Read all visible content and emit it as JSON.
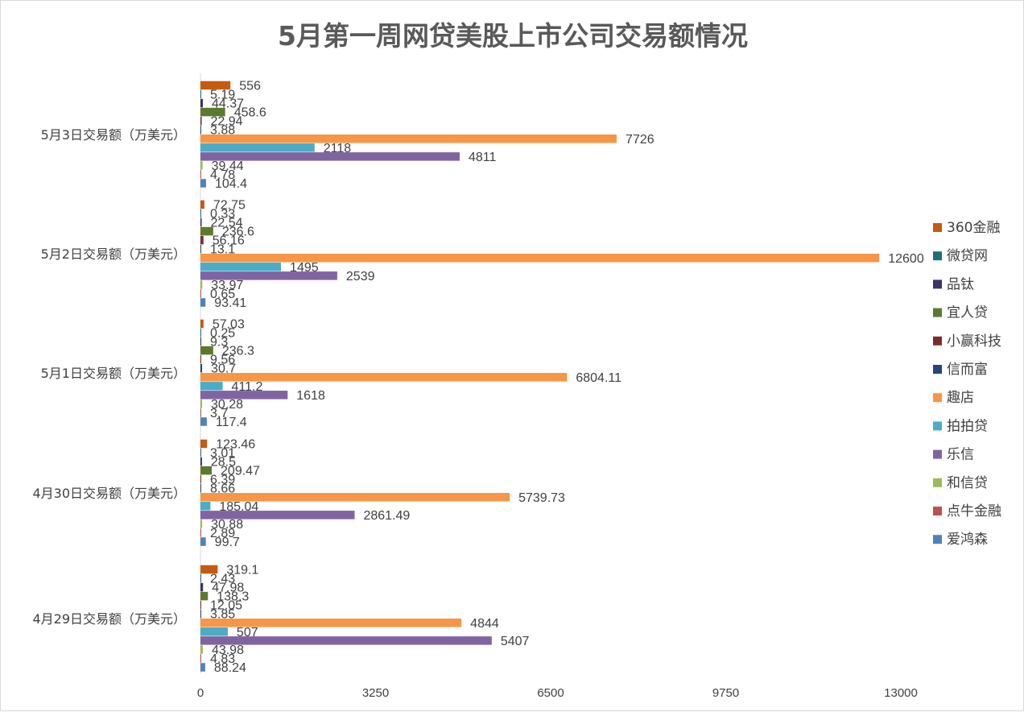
{
  "chart_data": {
    "type": "bar",
    "orientation": "horizontal",
    "title": "5月第一周网贷美股上市公司交易额情况",
    "categories": [
      "4月29日交易额（万美元）",
      "4月30日交易额（万美元）",
      "5月1日交易额（万美元）",
      "5月2日交易额（万美元）",
      "5月3日交易额（万美元）"
    ],
    "xlim": [
      0,
      13000
    ],
    "ticks": [
      "0",
      "3250",
      "6500",
      "9750",
      "13000"
    ],
    "grid": false,
    "legend_position": "right",
    "series": [
      {
        "name": "360金融",
        "color": "#C55A11",
        "values": [
          319.1,
          123.46,
          57.03,
          72.75,
          556
        ],
        "labels": [
          "319.1",
          "123.46",
          "57.03",
          "72.75",
          "556"
        ]
      },
      {
        "name": "微贷网",
        "color": "#1F6E7E",
        "values": [
          2.43,
          3.01,
          0.25,
          0.33,
          5.19
        ],
        "labels": [
          "2.43",
          "3.01",
          "0.25",
          "0.33",
          "5.19"
        ]
      },
      {
        "name": "品钛",
        "color": "#3D3166",
        "values": [
          47.98,
          28.5,
          9.3,
          22.54,
          44.37
        ],
        "labels": [
          "47.98",
          "28.5",
          "9.3",
          "22.54",
          "44.37"
        ]
      },
      {
        "name": "宜人贷",
        "color": "#5B7A2F",
        "values": [
          138.3,
          209.47,
          236.3,
          236.6,
          458.6
        ],
        "labels": [
          "138.3",
          "209.47",
          "236.3",
          "236.6",
          "458.6"
        ]
      },
      {
        "name": "小赢科技",
        "color": "#7B2C2C",
        "values": [
          12.05,
          6.39,
          9.56,
          56.16,
          22.94
        ],
        "labels": [
          "12.05",
          "6.39",
          "9.56",
          "56.16",
          "22.94"
        ]
      },
      {
        "name": "信而富",
        "color": "#264478",
        "values": [
          3.85,
          8.66,
          30.7,
          13.1,
          3.88
        ],
        "labels": [
          "3.85",
          "8.66",
          "30.7",
          "13.1",
          "3.88"
        ]
      },
      {
        "name": "趣店",
        "color": "#F79646",
        "values": [
          4844,
          5739.73,
          6804.11,
          12600,
          7726
        ],
        "labels": [
          "4844",
          "5739.73",
          "6804.11",
          "12600",
          "7726"
        ]
      },
      {
        "name": "拍拍贷",
        "color": "#4BACC6",
        "values": [
          507,
          185.04,
          411.2,
          1495,
          2118
        ],
        "labels": [
          "507",
          "185.04",
          "411.2",
          "1495",
          "2118"
        ]
      },
      {
        "name": "乐信",
        "color": "#8064A2",
        "values": [
          5407,
          2861.49,
          1618,
          2539,
          4811
        ],
        "labels": [
          "5407",
          "2861.49",
          "1618",
          "2539",
          "4811"
        ]
      },
      {
        "name": "和信贷",
        "color": "#9BBB59",
        "values": [
          43.98,
          30.88,
          30.28,
          33.97,
          39.44
        ],
        "labels": [
          "43.98",
          "30.88",
          "30.28",
          "33.97",
          "39.44"
        ]
      },
      {
        "name": "点牛金融",
        "color": "#C0504D",
        "values": [
          4.83,
          2.89,
          3.7,
          0.65,
          4.78
        ],
        "labels": [
          "4.83",
          "2.89",
          "3.7",
          "0.65",
          "4.78"
        ]
      },
      {
        "name": "爱鸿森",
        "color": "#4F81BD",
        "values": [
          88.24,
          99.7,
          117.4,
          93.41,
          104.4
        ],
        "labels": [
          "88.24",
          "99.7",
          "117.4",
          "93.41",
          "104.4"
        ]
      }
    ]
  }
}
